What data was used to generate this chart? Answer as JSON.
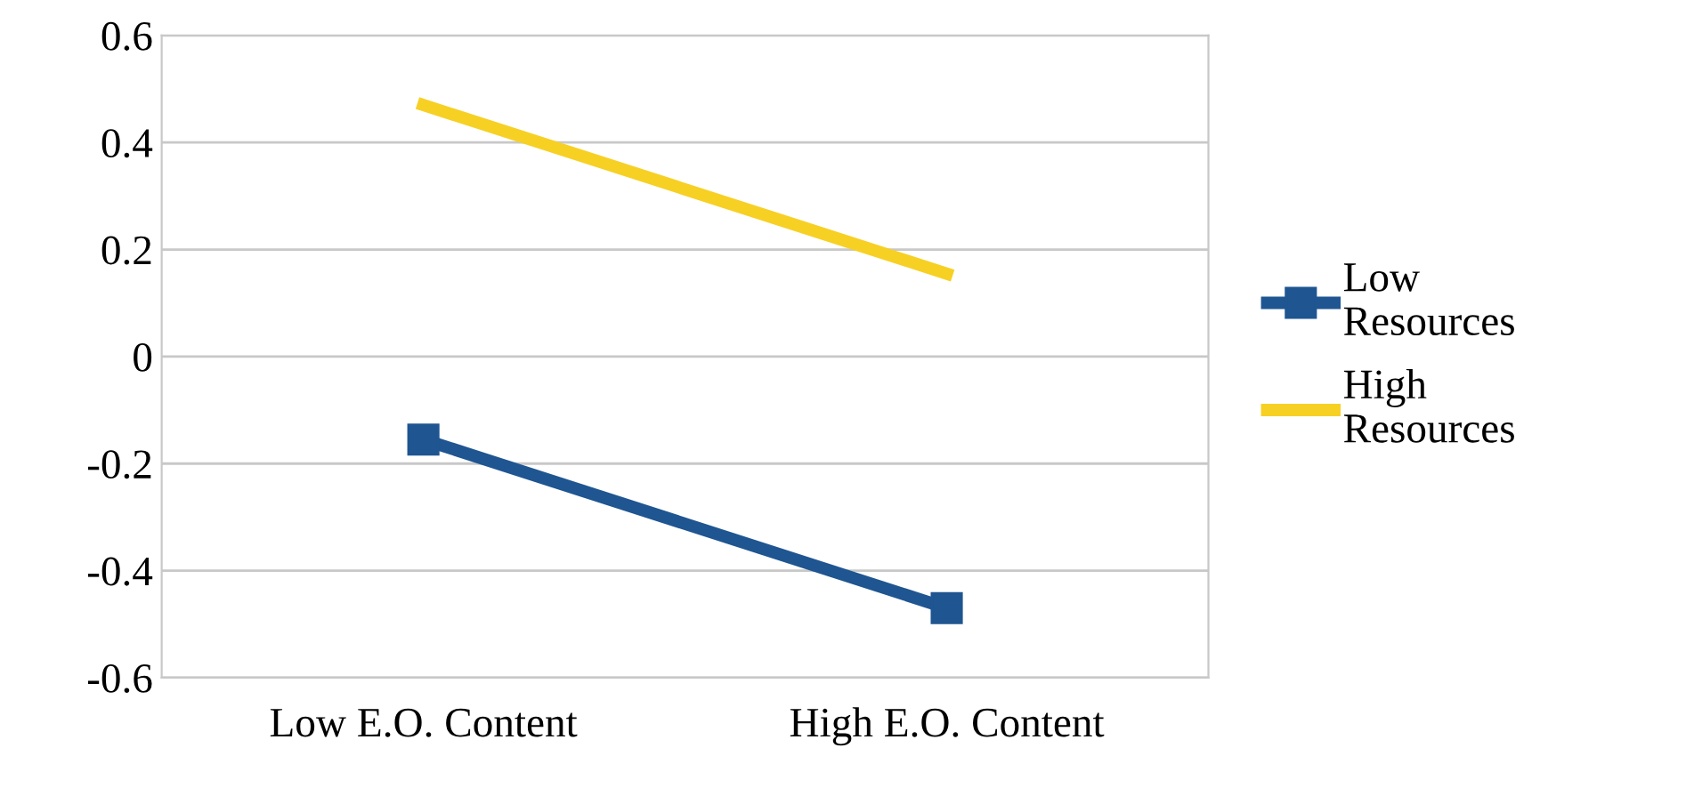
{
  "chart_data": {
    "type": "line",
    "categories": [
      "Low E.O. Content",
      "High E.O. Content"
    ],
    "series": [
      {
        "name": "Low Resources",
        "color": "#1f5591",
        "values": [
          -0.155,
          -0.47
        ],
        "marker": "square"
      },
      {
        "name": "High Resources",
        "color": "#f7d024",
        "values": [
          0.47,
          0.155
        ],
        "marker": "none"
      }
    ],
    "ylim": [
      -0.6,
      0.6
    ],
    "yticks": [
      -0.6,
      -0.4,
      -0.2,
      0,
      0.2,
      0.4,
      0.6
    ],
    "grid": "y",
    "legend": "right",
    "line_style": "solid"
  }
}
